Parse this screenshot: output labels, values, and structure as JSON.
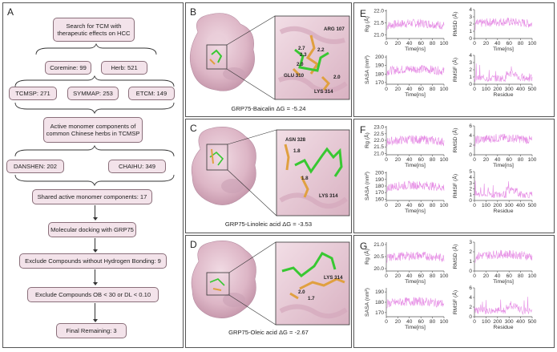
{
  "panels": {
    "A": {
      "label": "A"
    },
    "B": {
      "label": "B",
      "caption": "GRP75-Baicalin ΔG = -5.24",
      "residues": [
        "ARG 107",
        "GLU 310",
        "LYS 314"
      ],
      "distances": [
        "2.7",
        "2.3",
        "2.2",
        "2.0",
        "2.0"
      ]
    },
    "C": {
      "label": "C",
      "caption": "GRP75-Linoleic acid ΔG = -3.53",
      "residues": [
        "ASN 328",
        "LYS 314"
      ],
      "distances": [
        "1.8",
        "1.8"
      ]
    },
    "D": {
      "label": "D",
      "caption": "GRP75-Oleic acid ΔG = -2.67",
      "residues": [
        "LYS 314"
      ],
      "distances": [
        "2.0",
        "1.7"
      ]
    },
    "E": {
      "label": "E"
    },
    "F": {
      "label": "F"
    },
    "G": {
      "label": "G"
    }
  },
  "flowchart": {
    "search": "Search for TCM with therapeutic effects on HCC",
    "coremine": "Coremine: 99",
    "herb": "Herb: 521",
    "tcmsp": "TCMSP: 271",
    "symmap": "SYMMAP: 253",
    "etcm": "ETCM: 149",
    "active": "Active monomer components of common Chinese herbs in TCMSP",
    "danshen": "DANSHEN: 202",
    "chaihu": "CHAIHU: 349",
    "shared": "Shared active monomer components: 17",
    "docking": "Molecular docking with GRP75",
    "exclude_hb": "Exclude Compounds without Hydrogen Bonding: 9",
    "exclude_ob": "Exclude Compounds OB < 30 or DL < 0.10",
    "final": "Final Remaining: 3"
  },
  "md_plots": {
    "time_label": "Time[ns]",
    "residue_label": "Residue",
    "rg_label": "Rg (Å)",
    "rmsd_label": "RMSD (Å)",
    "sasa_label": "SASA (nm²)",
    "rmsf_label": "RMSF (Å)",
    "colors": {
      "trace": "#e27be0"
    },
    "rows": [
      {
        "rg_ticks": [
          "21.0",
          "21.5",
          "22.0"
        ],
        "rg_range": [
          20.85,
          22.05
        ],
        "rmsd_ticks": [
          "0",
          "1",
          "2",
          "3",
          "4"
        ],
        "rmsd_range": [
          0,
          4
        ],
        "sasa_ticks": [
          "170",
          "180",
          "190",
          "200"
        ],
        "sasa_range": [
          168,
          202
        ],
        "rmsf_ticks": [
          "0",
          "1",
          "2",
          "3",
          "4"
        ],
        "rmsf_range": [
          0,
          4
        ]
      },
      {
        "rg_ticks": [
          "21.0",
          "21.5",
          "22.0",
          "22.5",
          "23.0"
        ],
        "rg_range": [
          20.9,
          23.1
        ],
        "rmsd_ticks": [
          "0",
          "2",
          "4",
          "6"
        ],
        "rmsd_range": [
          0,
          6
        ],
        "sasa_ticks": [
          "160",
          "170",
          "180",
          "190",
          "200"
        ],
        "sasa_range": [
          158,
          202
        ],
        "rmsf_ticks": [
          "0",
          "1",
          "2",
          "3",
          "4",
          "5"
        ],
        "rmsf_range": [
          0,
          5
        ]
      },
      {
        "rg_ticks": [
          "20.0",
          "20.5",
          "21.0"
        ],
        "rg_range": [
          19.9,
          21.1
        ],
        "rmsd_ticks": [
          "0",
          "1",
          "2",
          "3"
        ],
        "rmsd_range": [
          0,
          3
        ],
        "sasa_ticks": [
          "170",
          "180",
          "190"
        ],
        "sasa_range": [
          166,
          194
        ],
        "rmsf_ticks": [
          "0",
          "2",
          "4",
          "6"
        ],
        "rmsf_range": [
          0,
          6
        ]
      }
    ],
    "time_ticks": [
      "0",
      "20",
      "40",
      "60",
      "80",
      "100"
    ],
    "residue_ticks": [
      "0",
      "100",
      "200",
      "300",
      "400",
      "500"
    ]
  }
}
